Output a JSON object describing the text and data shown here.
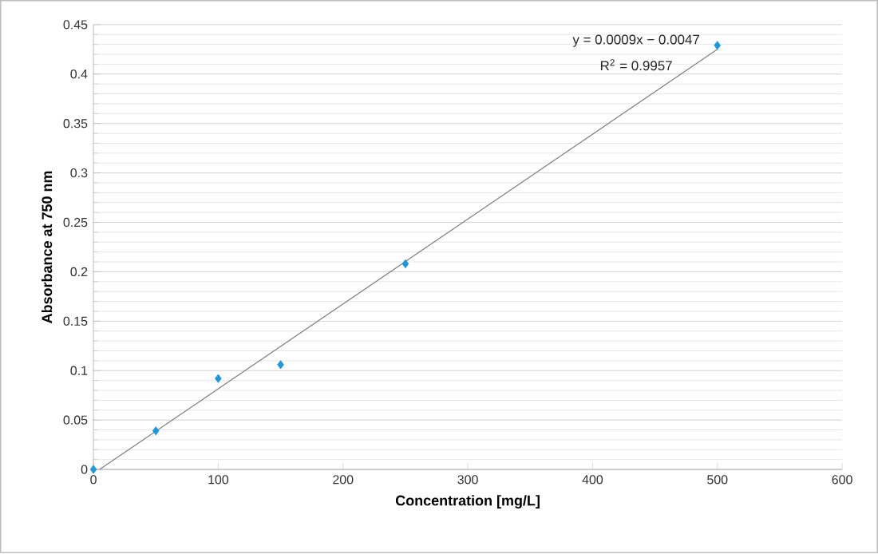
{
  "chart_data": {
    "type": "scatter",
    "xlabel": "Concentration [mg/L]",
    "ylabel": "Absorbance at 750 nm",
    "series": [
      {
        "color": "#1f96d8",
        "marker": "diamond",
        "x": [
          0,
          50,
          100,
          150,
          250,
          500
        ],
        "values": [
          0,
          0.039,
          0.092,
          0.106,
          0.208,
          0.429
        ]
      },
      {
        "type": "line",
        "color": "#7f7f7f",
        "marker": "none",
        "line_style": "solid",
        "x": [
          5,
          500
        ],
        "values": [
          0,
          0.425
        ]
      }
    ],
    "annotations": [
      "y = 0.0009x − 0.0047",
      "R$^{2}$ = 0.9957"
    ],
    "xlim": [
      0,
      600
    ],
    "xticks": [
      0,
      100,
      200,
      300,
      400,
      500,
      600
    ],
    "ylim": [
      0,
      0.45
    ],
    "yticks": [
      0,
      0.05,
      0.1,
      0.15,
      0.2,
      0.25,
      0.3,
      0.35,
      0.4,
      0.45
    ],
    "grid": "y"
  }
}
